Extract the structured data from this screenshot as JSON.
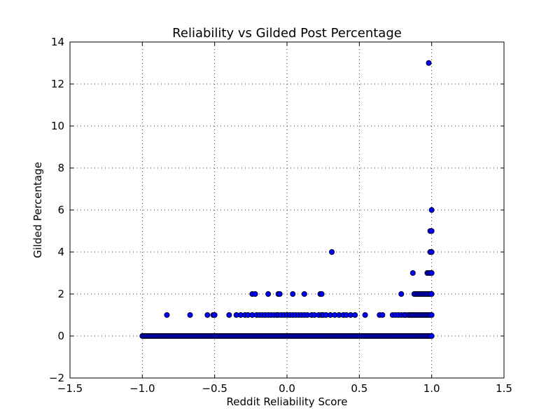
{
  "chart_data": {
    "type": "scatter",
    "title": "Reliability vs Gilded Post Percentage",
    "xlabel": "Reddit Reliability Score",
    "ylabel": "Gilded Percentage",
    "xlim": [
      -1.5,
      1.5
    ],
    "ylim": [
      -2,
      14
    ],
    "xticks": [
      -1.5,
      -1.0,
      -0.5,
      0.0,
      0.5,
      1.0,
      1.5
    ],
    "xtick_labels": [
      "−1.5",
      "−1.0",
      "−0.5",
      "0.0",
      "0.5",
      "1.0",
      "1.5"
    ],
    "yticks": [
      -2,
      0,
      2,
      4,
      6,
      8,
      10,
      12,
      14
    ],
    "ytick_labels": [
      "−2",
      "0",
      "2",
      "4",
      "6",
      "8",
      "10",
      "12",
      "14"
    ],
    "grid": true,
    "marker_color": "#0000ff",
    "points": [
      [
        -1.0,
        0
      ],
      [
        -0.99,
        0
      ],
      [
        -0.98,
        0
      ],
      [
        -0.97,
        0
      ],
      [
        -0.96,
        0
      ],
      [
        -0.95,
        0
      ],
      [
        -0.94,
        0
      ],
      [
        -0.93,
        0
      ],
      [
        -0.92,
        0
      ],
      [
        -0.91,
        0
      ],
      [
        -0.9,
        0
      ],
      [
        -0.89,
        0
      ],
      [
        -0.88,
        0
      ],
      [
        -0.87,
        0
      ],
      [
        -0.86,
        0
      ],
      [
        -0.85,
        0
      ],
      [
        -0.84,
        0
      ],
      [
        -0.83,
        0
      ],
      [
        -0.82,
        0
      ],
      [
        -0.81,
        0
      ],
      [
        -0.8,
        0
      ],
      [
        -0.79,
        0
      ],
      [
        -0.78,
        0
      ],
      [
        -0.77,
        0
      ],
      [
        -0.76,
        0
      ],
      [
        -0.75,
        0
      ],
      [
        -0.74,
        0
      ],
      [
        -0.73,
        0
      ],
      [
        -0.72,
        0
      ],
      [
        -0.71,
        0
      ],
      [
        -0.7,
        0
      ],
      [
        -0.69,
        0
      ],
      [
        -0.68,
        0
      ],
      [
        -0.67,
        0
      ],
      [
        -0.66,
        0
      ],
      [
        -0.65,
        0
      ],
      [
        -0.64,
        0
      ],
      [
        -0.63,
        0
      ],
      [
        -0.62,
        0
      ],
      [
        -0.61,
        0
      ],
      [
        -0.6,
        0
      ],
      [
        -0.59,
        0
      ],
      [
        -0.58,
        0
      ],
      [
        -0.57,
        0
      ],
      [
        -0.56,
        0
      ],
      [
        -0.55,
        0
      ],
      [
        -0.54,
        0
      ],
      [
        -0.53,
        0
      ],
      [
        -0.52,
        0
      ],
      [
        -0.51,
        0
      ],
      [
        -0.5,
        0
      ],
      [
        -0.49,
        0
      ],
      [
        -0.48,
        0
      ],
      [
        -0.47,
        0
      ],
      [
        -0.46,
        0
      ],
      [
        -0.45,
        0
      ],
      [
        -0.44,
        0
      ],
      [
        -0.43,
        0
      ],
      [
        -0.42,
        0
      ],
      [
        -0.41,
        0
      ],
      [
        -0.4,
        0
      ],
      [
        -0.39,
        0
      ],
      [
        -0.38,
        0
      ],
      [
        -0.37,
        0
      ],
      [
        -0.36,
        0
      ],
      [
        -0.35,
        0
      ],
      [
        -0.34,
        0
      ],
      [
        -0.33,
        0
      ],
      [
        -0.32,
        0
      ],
      [
        -0.31,
        0
      ],
      [
        -0.3,
        0
      ],
      [
        -0.29,
        0
      ],
      [
        -0.28,
        0
      ],
      [
        -0.27,
        0
      ],
      [
        -0.26,
        0
      ],
      [
        -0.25,
        0
      ],
      [
        -0.24,
        0
      ],
      [
        -0.23,
        0
      ],
      [
        -0.22,
        0
      ],
      [
        -0.21,
        0
      ],
      [
        -0.2,
        0
      ],
      [
        -0.19,
        0
      ],
      [
        -0.18,
        0
      ],
      [
        -0.17,
        0
      ],
      [
        -0.16,
        0
      ],
      [
        -0.15,
        0
      ],
      [
        -0.14,
        0
      ],
      [
        -0.13,
        0
      ],
      [
        -0.12,
        0
      ],
      [
        -0.11,
        0
      ],
      [
        -0.1,
        0
      ],
      [
        -0.09,
        0
      ],
      [
        -0.08,
        0
      ],
      [
        -0.07,
        0
      ],
      [
        -0.06,
        0
      ],
      [
        -0.05,
        0
      ],
      [
        -0.04,
        0
      ],
      [
        -0.03,
        0
      ],
      [
        -0.02,
        0
      ],
      [
        -0.01,
        0
      ],
      [
        0.0,
        0
      ],
      [
        0.01,
        0
      ],
      [
        0.02,
        0
      ],
      [
        0.03,
        0
      ],
      [
        0.04,
        0
      ],
      [
        0.05,
        0
      ],
      [
        0.06,
        0
      ],
      [
        0.07,
        0
      ],
      [
        0.08,
        0
      ],
      [
        0.09,
        0
      ],
      [
        0.1,
        0
      ],
      [
        0.11,
        0
      ],
      [
        0.12,
        0
      ],
      [
        0.13,
        0
      ],
      [
        0.14,
        0
      ],
      [
        0.15,
        0
      ],
      [
        0.16,
        0
      ],
      [
        0.17,
        0
      ],
      [
        0.18,
        0
      ],
      [
        0.19,
        0
      ],
      [
        0.2,
        0
      ],
      [
        0.21,
        0
      ],
      [
        0.22,
        0
      ],
      [
        0.23,
        0
      ],
      [
        0.24,
        0
      ],
      [
        0.25,
        0
      ],
      [
        0.26,
        0
      ],
      [
        0.27,
        0
      ],
      [
        0.28,
        0
      ],
      [
        0.29,
        0
      ],
      [
        0.3,
        0
      ],
      [
        0.31,
        0
      ],
      [
        0.32,
        0
      ],
      [
        0.33,
        0
      ],
      [
        0.34,
        0
      ],
      [
        0.35,
        0
      ],
      [
        0.36,
        0
      ],
      [
        0.37,
        0
      ],
      [
        0.38,
        0
      ],
      [
        0.39,
        0
      ],
      [
        0.4,
        0
      ],
      [
        0.41,
        0
      ],
      [
        0.42,
        0
      ],
      [
        0.43,
        0
      ],
      [
        0.44,
        0
      ],
      [
        0.45,
        0
      ],
      [
        0.46,
        0
      ],
      [
        0.47,
        0
      ],
      [
        0.48,
        0
      ],
      [
        0.49,
        0
      ],
      [
        0.5,
        0
      ],
      [
        0.51,
        0
      ],
      [
        0.52,
        0
      ],
      [
        0.53,
        0
      ],
      [
        0.54,
        0
      ],
      [
        0.55,
        0
      ],
      [
        0.56,
        0
      ],
      [
        0.57,
        0
      ],
      [
        0.58,
        0
      ],
      [
        0.59,
        0
      ],
      [
        0.6,
        0
      ],
      [
        0.61,
        0
      ],
      [
        0.62,
        0
      ],
      [
        0.63,
        0
      ],
      [
        0.64,
        0
      ],
      [
        0.65,
        0
      ],
      [
        0.66,
        0
      ],
      [
        0.67,
        0
      ],
      [
        0.68,
        0
      ],
      [
        0.69,
        0
      ],
      [
        0.7,
        0
      ],
      [
        0.71,
        0
      ],
      [
        0.72,
        0
      ],
      [
        0.73,
        0
      ],
      [
        0.74,
        0
      ],
      [
        0.75,
        0
      ],
      [
        0.76,
        0
      ],
      [
        0.77,
        0
      ],
      [
        0.78,
        0
      ],
      [
        0.79,
        0
      ],
      [
        0.8,
        0
      ],
      [
        0.81,
        0
      ],
      [
        0.82,
        0
      ],
      [
        0.83,
        0
      ],
      [
        0.84,
        0
      ],
      [
        0.85,
        0
      ],
      [
        0.86,
        0
      ],
      [
        0.87,
        0
      ],
      [
        0.88,
        0
      ],
      [
        0.89,
        0
      ],
      [
        0.9,
        0
      ],
      [
        0.91,
        0
      ],
      [
        0.92,
        0
      ],
      [
        0.93,
        0
      ],
      [
        0.94,
        0
      ],
      [
        0.95,
        0
      ],
      [
        0.96,
        0
      ],
      [
        0.97,
        0
      ],
      [
        0.98,
        0
      ],
      [
        0.99,
        0
      ],
      [
        1.0,
        0
      ],
      [
        -0.83,
        1
      ],
      [
        -0.67,
        1
      ],
      [
        -0.55,
        1
      ],
      [
        -0.51,
        1
      ],
      [
        -0.5,
        1
      ],
      [
        -0.4,
        1
      ],
      [
        -0.35,
        1
      ],
      [
        -0.32,
        1
      ],
      [
        -0.29,
        1
      ],
      [
        -0.27,
        1
      ],
      [
        -0.24,
        1
      ],
      [
        -0.21,
        1
      ],
      [
        -0.19,
        1
      ],
      [
        -0.17,
        1
      ],
      [
        -0.15,
        1
      ],
      [
        -0.13,
        1
      ],
      [
        -0.11,
        1
      ],
      [
        -0.09,
        1
      ],
      [
        -0.07,
        1
      ],
      [
        -0.06,
        1
      ],
      [
        -0.04,
        1
      ],
      [
        -0.02,
        1
      ],
      [
        0.0,
        1
      ],
      [
        0.02,
        1
      ],
      [
        0.04,
        1
      ],
      [
        0.06,
        1
      ],
      [
        0.08,
        1
      ],
      [
        0.1,
        1
      ],
      [
        0.12,
        1
      ],
      [
        0.14,
        1
      ],
      [
        0.17,
        1
      ],
      [
        0.19,
        1
      ],
      [
        0.22,
        1
      ],
      [
        0.24,
        1
      ],
      [
        0.25,
        1
      ],
      [
        0.27,
        1
      ],
      [
        0.3,
        1
      ],
      [
        0.33,
        1
      ],
      [
        0.36,
        1
      ],
      [
        0.39,
        1
      ],
      [
        0.41,
        1
      ],
      [
        0.44,
        1
      ],
      [
        0.47,
        1
      ],
      [
        0.54,
        1
      ],
      [
        0.64,
        1
      ],
      [
        0.66,
        1
      ],
      [
        0.73,
        1
      ],
      [
        0.75,
        1
      ],
      [
        0.77,
        1
      ],
      [
        0.79,
        1
      ],
      [
        0.81,
        1
      ],
      [
        0.82,
        1
      ],
      [
        0.84,
        1
      ],
      [
        0.85,
        1
      ],
      [
        0.86,
        1
      ],
      [
        0.87,
        1
      ],
      [
        0.88,
        1
      ],
      [
        0.89,
        1
      ],
      [
        0.9,
        1
      ],
      [
        0.91,
        1
      ],
      [
        0.92,
        1
      ],
      [
        0.93,
        1
      ],
      [
        0.94,
        1
      ],
      [
        0.95,
        1
      ],
      [
        0.96,
        1
      ],
      [
        0.97,
        1
      ],
      [
        0.98,
        1
      ],
      [
        0.99,
        1
      ],
      [
        1.0,
        1
      ],
      [
        -0.24,
        2
      ],
      [
        -0.22,
        2
      ],
      [
        -0.13,
        2
      ],
      [
        -0.06,
        2
      ],
      [
        -0.05,
        2
      ],
      [
        0.04,
        2
      ],
      [
        0.12,
        2
      ],
      [
        0.23,
        2
      ],
      [
        0.24,
        2
      ],
      [
        0.79,
        2
      ],
      [
        0.88,
        2
      ],
      [
        0.89,
        2
      ],
      [
        0.9,
        2
      ],
      [
        0.91,
        2
      ],
      [
        0.92,
        2
      ],
      [
        0.93,
        2
      ],
      [
        0.94,
        2
      ],
      [
        0.95,
        2
      ],
      [
        0.96,
        2
      ],
      [
        0.97,
        2
      ],
      [
        0.98,
        2
      ],
      [
        0.99,
        2
      ],
      [
        1.0,
        2
      ],
      [
        0.87,
        3
      ],
      [
        0.97,
        3
      ],
      [
        0.98,
        3
      ],
      [
        0.99,
        3
      ],
      [
        1.0,
        3
      ],
      [
        0.31,
        4
      ],
      [
        0.99,
        4
      ],
      [
        1.0,
        4
      ],
      [
        0.99,
        5
      ],
      [
        1.0,
        5
      ],
      [
        1.0,
        6
      ],
      [
        0.98,
        13
      ]
    ]
  }
}
